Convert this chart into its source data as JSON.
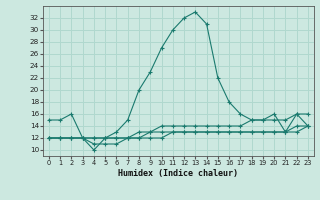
{
  "xlabel": "Humidex (Indice chaleur)",
  "bg_color": "#cce8e0",
  "grid_color": "#b0d8ce",
  "line_color": "#1a7a6e",
  "xlim": [
    -0.5,
    23.5
  ],
  "ylim": [
    9,
    34
  ],
  "yticks": [
    10,
    12,
    14,
    16,
    18,
    20,
    22,
    24,
    26,
    28,
    30,
    32
  ],
  "xticks": [
    0,
    1,
    2,
    3,
    4,
    5,
    6,
    7,
    8,
    9,
    10,
    11,
    12,
    13,
    14,
    15,
    16,
    17,
    18,
    19,
    20,
    21,
    22,
    23
  ],
  "series": [
    {
      "x": [
        0,
        1,
        2,
        3,
        4,
        5,
        6,
        7,
        8,
        9,
        10,
        11,
        12,
        13,
        14,
        15,
        16,
        17,
        18,
        19,
        20,
        21,
        22,
        23
      ],
      "y": [
        15,
        15,
        16,
        12,
        10,
        12,
        13,
        15,
        20,
        23,
        27,
        30,
        32,
        33,
        31,
        22,
        18,
        16,
        15,
        15,
        16,
        13,
        16,
        16
      ]
    },
    {
      "x": [
        0,
        1,
        2,
        3,
        4,
        5,
        6,
        7,
        8,
        9,
        10,
        11,
        12,
        13,
        14,
        15,
        16,
        17,
        18,
        19,
        20,
        21,
        22,
        23
      ],
      "y": [
        12,
        12,
        12,
        12,
        11,
        11,
        11,
        12,
        12,
        12,
        12,
        13,
        13,
        13,
        13,
        13,
        13,
        13,
        13,
        13,
        13,
        13,
        14,
        14
      ]
    },
    {
      "x": [
        0,
        1,
        2,
        3,
        4,
        5,
        6,
        7,
        8,
        9,
        10,
        11,
        12,
        13,
        14,
        15,
        16,
        17,
        18,
        19,
        20,
        21,
        22,
        23
      ],
      "y": [
        12,
        12,
        12,
        12,
        12,
        12,
        12,
        12,
        12,
        13,
        13,
        13,
        13,
        13,
        13,
        13,
        13,
        13,
        13,
        13,
        13,
        13,
        13,
        14
      ]
    },
    {
      "x": [
        0,
        1,
        2,
        3,
        4,
        5,
        6,
        7,
        8,
        9,
        10,
        11,
        12,
        13,
        14,
        15,
        16,
        17,
        18,
        19,
        20,
        21,
        22,
        23
      ],
      "y": [
        12,
        12,
        12,
        12,
        12,
        12,
        12,
        12,
        13,
        13,
        14,
        14,
        14,
        14,
        14,
        14,
        14,
        14,
        15,
        15,
        15,
        15,
        16,
        14
      ]
    }
  ]
}
